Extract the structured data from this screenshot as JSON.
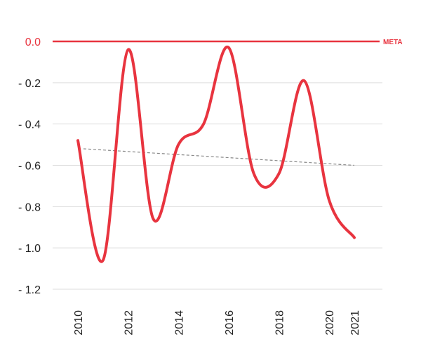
{
  "chart_data": {
    "type": "line",
    "x": [
      2010,
      2011,
      2012,
      2013,
      2014,
      2015,
      2016,
      2017,
      2018,
      2019,
      2020,
      2021
    ],
    "x_tick_labels": [
      "2010",
      "2012",
      "2014",
      "2016",
      "2018",
      "2020",
      "2021"
    ],
    "y_ticks": [
      0.0,
      -0.2,
      -0.4,
      -0.6,
      -0.8,
      -1.0,
      -1.2
    ],
    "y_tick_labels": [
      "0.0",
      "- 0.2",
      "- 0.4",
      "- 0.6",
      "- 0.8",
      "- 1.0",
      "- 1.2"
    ],
    "ylim": [
      -1.2,
      0.0
    ],
    "series": [
      {
        "values": [
          -0.48,
          -1.06,
          -0.04,
          -0.86,
          -0.5,
          -0.4,
          -0.03,
          -0.64,
          -0.64,
          -0.19,
          -0.77,
          -0.95
        ],
        "color": "#e8343f"
      }
    ],
    "trend": {
      "from": [
        2010,
        -0.52
      ],
      "to": [
        2021,
        -0.6
      ],
      "color": "#888888",
      "style": "dashed"
    },
    "reference_line": {
      "value": 0.0,
      "label": "META",
      "color": "#e8343f"
    },
    "grid": "horizontal"
  }
}
